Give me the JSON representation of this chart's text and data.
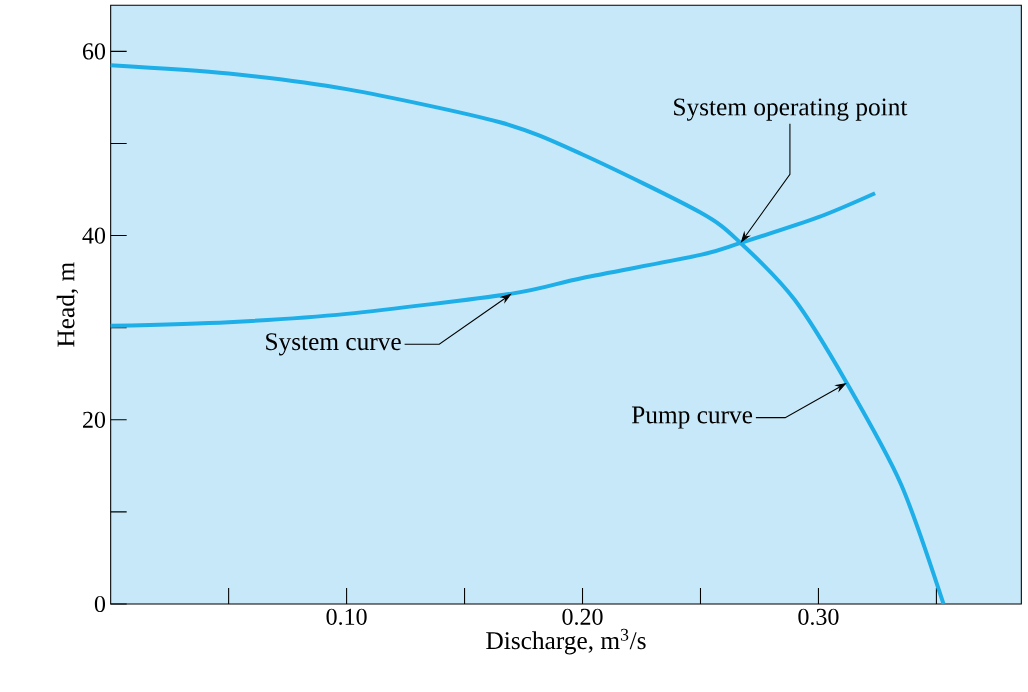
{
  "chart_data": {
    "type": "line",
    "xlabel": "Discharge, m$^{3}$/s",
    "ylabel": "Head, m",
    "xlim": [
      0,
      0.386
    ],
    "ylim": [
      0,
      65
    ],
    "xticks": [
      {
        "value": 0.05,
        "label": null
      },
      {
        "value": 0.1,
        "label": "0.10"
      },
      {
        "value": 0.15,
        "label": null
      },
      {
        "value": 0.2,
        "label": "0.20"
      },
      {
        "value": 0.25,
        "label": null
      },
      {
        "value": 0.3,
        "label": "0.30"
      },
      {
        "value": 0.35,
        "label": null
      }
    ],
    "yticks": [
      0,
      {
        "value": 10,
        "label": null
      },
      20,
      {
        "value": 30,
        "label": null
      },
      40,
      {
        "value": 50,
        "label": null
      },
      60
    ],
    "grid": false,
    "marker": "none",
    "line_style": "solid",
    "series": [
      {
        "color": "#1eaee8",
        "x": [
          0,
          0.05,
          0.1,
          0.165,
          0.2,
          0.25,
          0.267,
          0.29,
          0.312,
          0.335,
          0.353
        ],
        "values": [
          58.5,
          57.6,
          55.9,
          52.3,
          48.8,
          42.5,
          39.2,
          33,
          24,
          13,
          0
        ]
      },
      {
        "color": "#1eaee8",
        "x": [
          0,
          0.05,
          0.1,
          0.17,
          0.2,
          0.25,
          0.267,
          0.3,
          0.324
        ],
        "values": [
          30.2,
          30.6,
          31.5,
          33.7,
          35.4,
          37.9,
          39.2,
          42,
          44.6
        ]
      }
    ],
    "annotations": [
      {
        "text": "System operating point",
        "x": 0.267,
        "y": 39.2
      },
      {
        "text": "System curve",
        "x": 0.17,
        "y": 33.7
      },
      {
        "text": "Pump curve",
        "x": 0.312,
        "y": 24
      }
    ]
  }
}
